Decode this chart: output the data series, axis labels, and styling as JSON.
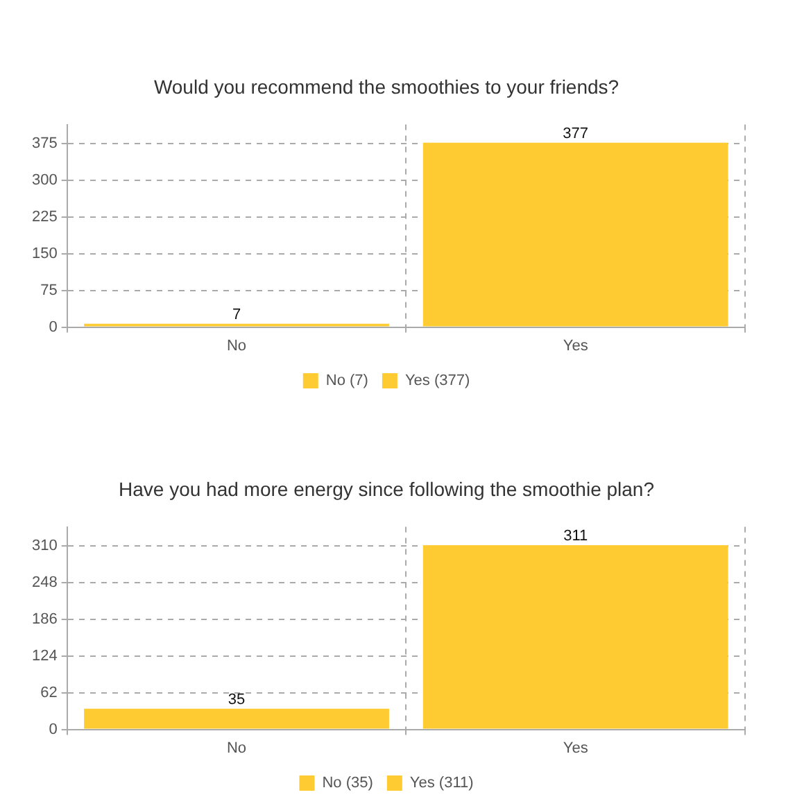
{
  "chart_data": [
    {
      "type": "bar",
      "title": "Would you recommend the smoothies to your friends?",
      "categories": [
        "No",
        "Yes"
      ],
      "stacked": true,
      "series": [
        {
          "name": "No (7)",
          "color": "#ffcb32",
          "values": [
            7,
            null
          ]
        },
        {
          "name": "Yes (377)",
          "color": "#ffcb32",
          "values": [
            null,
            377
          ]
        }
      ],
      "ylim": [
        0,
        414
      ],
      "yticks": [
        0,
        75,
        150,
        225,
        300,
        375
      ],
      "grid": true,
      "legend": "bottom",
      "data_labels": true
    },
    {
      "type": "bar",
      "title": "Have you had more energy since following the smoothie plan?",
      "categories": [
        "No",
        "Yes"
      ],
      "stacked": true,
      "series": [
        {
          "name": "No (35)",
          "color": "#ffcb32",
          "values": [
            35,
            null
          ]
        },
        {
          "name": "Yes (311)",
          "color": "#ffcb32",
          "values": [
            null,
            311
          ]
        }
      ],
      "ylim": [
        0,
        342
      ],
      "yticks": [
        0,
        62,
        124,
        186,
        248,
        310
      ],
      "grid": true,
      "legend": "bottom",
      "data_labels": true
    }
  ]
}
